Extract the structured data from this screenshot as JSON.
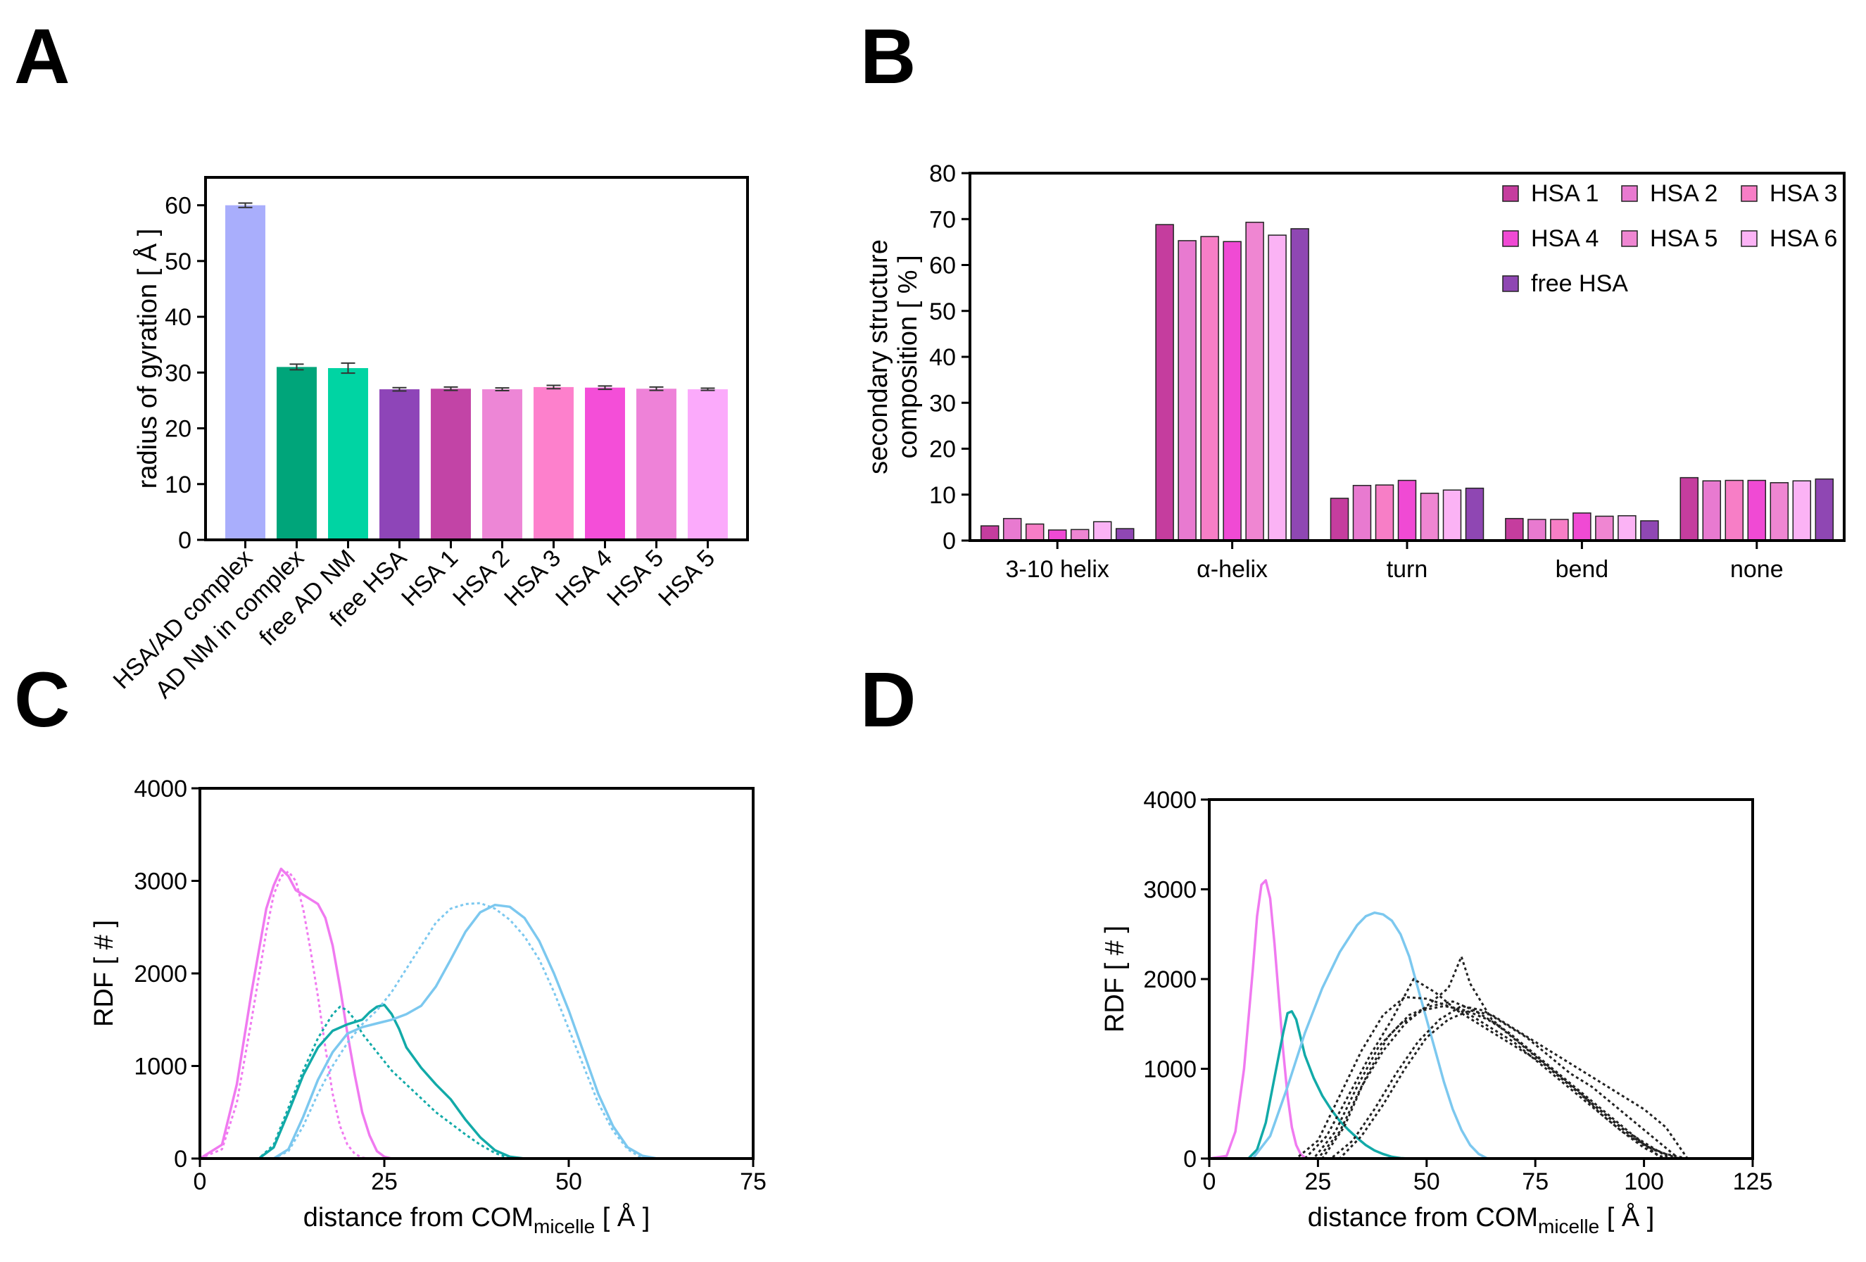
{
  "panels": [
    {
      "id": "A",
      "letter": "A"
    },
    {
      "id": "B",
      "letter": "B"
    },
    {
      "id": "C",
      "letter": "C"
    },
    {
      "id": "D",
      "letter": "D"
    }
  ],
  "chart_data": [
    {
      "panel": "A",
      "type": "bar",
      "title": "",
      "xlabel": "",
      "ylabel": "radius of gyration [ Å ]",
      "ylim": [
        0,
        65
      ],
      "yticks": [
        0,
        10,
        20,
        30,
        40,
        50,
        60
      ],
      "categories": [
        "HSA/AD complex",
        "AD NM in complex",
        "free AD NM",
        "free HSA",
        "HSA 1",
        "HSA 2",
        "HSA 3",
        "HSA 4",
        "HSA 5",
        "HSA 5"
      ],
      "values": [
        60.0,
        31.0,
        30.8,
        27.0,
        27.1,
        27.0,
        27.4,
        27.3,
        27.1,
        27.0
      ],
      "errors": [
        0.4,
        0.5,
        0.9,
        0.3,
        0.3,
        0.25,
        0.3,
        0.3,
        0.3,
        0.2
      ],
      "colors": [
        "#a9aefc",
        "#00a57a",
        "#00d4a3",
        "#8e45b8",
        "#c244a6",
        "#ed86d6",
        "#fd80cc",
        "#f44ed8",
        "#ee82d8",
        "#fbaafb"
      ]
    },
    {
      "panel": "B",
      "type": "bar",
      "title": "",
      "xlabel": "",
      "ylabel_lines": [
        "secondary structure",
        "composition [ % ]"
      ],
      "ylim": [
        0,
        80
      ],
      "yticks": [
        0,
        10,
        20,
        30,
        40,
        50,
        60,
        70,
        80
      ],
      "categories": [
        "3-10 helix",
        "α-helix",
        "turn",
        "bend",
        "none"
      ],
      "legend_position": "top-right",
      "series": [
        {
          "name": "HSA 1",
          "color": "#c53d9e",
          "values": [
            3.2,
            68.8,
            9.2,
            4.8,
            13.7
          ]
        },
        {
          "name": "HSA 2",
          "color": "#e87ad0",
          "values": [
            4.8,
            65.3,
            12.0,
            4.6,
            13.0
          ]
        },
        {
          "name": "HSA 3",
          "color": "#f77ec6",
          "values": [
            3.6,
            66.2,
            12.1,
            4.6,
            13.1
          ]
        },
        {
          "name": "HSA 4",
          "color": "#f04ad4",
          "values": [
            2.3,
            65.1,
            13.1,
            6.0,
            13.1
          ]
        },
        {
          "name": "HSA 5",
          "color": "#ef86d2",
          "values": [
            2.4,
            69.3,
            10.3,
            5.3,
            12.6
          ]
        },
        {
          "name": "HSA 6",
          "color": "#fbb3f5",
          "values": [
            4.1,
            66.5,
            11.0,
            5.4,
            13.0
          ]
        },
        {
          "name": "free HSA",
          "color": "#8f47b3",
          "values": [
            2.6,
            67.9,
            11.4,
            4.3,
            13.4
          ]
        }
      ]
    },
    {
      "panel": "C",
      "type": "line",
      "title": "",
      "xlabel_main": "distance from COM",
      "xlabel_sub": "micelle",
      "xlabel_unit": " [ Å ]",
      "ylabel": "RDF [ # ]",
      "xlim": [
        0,
        75
      ],
      "ylim": [
        0,
        4000
      ],
      "xticks": [
        0,
        25,
        50,
        75
      ],
      "yticks": [
        0,
        1000,
        2000,
        3000,
        4000
      ],
      "series": [
        {
          "name": "magenta solid",
          "color": "#f07af0",
          "style": "solid",
          "x": [
            0,
            3,
            5,
            7,
            9,
            10,
            11,
            12,
            13,
            14,
            15,
            16,
            17,
            18,
            19,
            20,
            21,
            22,
            23,
            24,
            25,
            26,
            75
          ],
          "y": [
            0,
            150,
            800,
            1800,
            2700,
            2950,
            3130,
            3050,
            2900,
            2850,
            2800,
            2750,
            2600,
            2300,
            1850,
            1350,
            900,
            500,
            250,
            80,
            20,
            0,
            0
          ]
        },
        {
          "name": "magenta dotted",
          "color": "#f07af0",
          "style": "dotted",
          "x": [
            0,
            3,
            5,
            7,
            9,
            10,
            11,
            12,
            13,
            14,
            15,
            16,
            17,
            18,
            19,
            20,
            21,
            22,
            23,
            75
          ],
          "y": [
            0,
            100,
            600,
            1500,
            2450,
            2850,
            3050,
            3100,
            3000,
            2700,
            2250,
            1750,
            1200,
            700,
            350,
            150,
            50,
            10,
            0,
            0
          ]
        },
        {
          "name": "teal solid",
          "color": "#12aaa8",
          "style": "solid",
          "x": [
            0,
            8,
            10,
            12,
            14,
            16,
            18,
            20,
            22,
            23,
            24,
            25,
            26,
            27,
            28,
            30,
            32,
            34,
            36,
            38,
            40,
            42,
            44,
            75
          ],
          "y": [
            0,
            0,
            120,
            500,
            900,
            1200,
            1380,
            1450,
            1500,
            1580,
            1640,
            1660,
            1560,
            1400,
            1200,
            980,
            800,
            640,
            420,
            230,
            90,
            20,
            0,
            0
          ]
        },
        {
          "name": "teal dotted",
          "color": "#12aaa8",
          "style": "dotted",
          "x": [
            0,
            8,
            10,
            12,
            14,
            16,
            18,
            19,
            20,
            21,
            22,
            24,
            26,
            28,
            30,
            32,
            34,
            36,
            38,
            40,
            42,
            75
          ],
          "y": [
            0,
            0,
            150,
            550,
            950,
            1300,
            1560,
            1640,
            1600,
            1500,
            1350,
            1150,
            950,
            800,
            650,
            500,
            380,
            260,
            150,
            60,
            0,
            0
          ]
        },
        {
          "name": "cyan solid",
          "color": "#7cc8ef",
          "style": "solid",
          "x": [
            0,
            10,
            12,
            14,
            16,
            18,
            20,
            22,
            24,
            26,
            28,
            30,
            32,
            34,
            36,
            38,
            40,
            42,
            44,
            46,
            48,
            50,
            52,
            54,
            56,
            58,
            60,
            62,
            75
          ],
          "y": [
            0,
            0,
            100,
            450,
            850,
            1150,
            1350,
            1420,
            1460,
            1500,
            1560,
            1650,
            1860,
            2150,
            2450,
            2660,
            2740,
            2720,
            2600,
            2350,
            2000,
            1600,
            1150,
            700,
            350,
            120,
            30,
            0,
            0
          ]
        },
        {
          "name": "cyan dotted",
          "color": "#7cc8ef",
          "style": "dotted",
          "x": [
            0,
            10,
            12,
            14,
            16,
            18,
            20,
            22,
            24,
            26,
            28,
            30,
            32,
            34,
            36,
            38,
            40,
            42,
            44,
            46,
            48,
            50,
            52,
            54,
            56,
            58,
            60,
            75
          ],
          "y": [
            0,
            0,
            80,
            350,
            700,
            1000,
            1250,
            1450,
            1600,
            1800,
            2050,
            2300,
            2550,
            2700,
            2750,
            2760,
            2700,
            2580,
            2400,
            2150,
            1800,
            1400,
            1000,
            600,
            300,
            100,
            0,
            0
          ]
        },
        {
          "name": "baseline purple",
          "color": "#b27ad8",
          "style": "solid",
          "x": [
            0,
            75
          ],
          "y": [
            0,
            0
          ]
        }
      ]
    },
    {
      "panel": "D",
      "type": "line",
      "title": "",
      "xlabel_main": "distance from COM",
      "xlabel_sub": "micelle",
      "xlabel_unit": " [ Å ]",
      "ylabel": "RDF [ # ]",
      "xlim": [
        0,
        125
      ],
      "ylim": [
        0,
        4000
      ],
      "xticks": [
        0,
        25,
        50,
        75,
        100,
        125
      ],
      "yticks": [
        0,
        1000,
        2000,
        3000,
        4000
      ],
      "series": [
        {
          "name": "magenta",
          "color": "#f07af0",
          "style": "solid",
          "x": [
            0,
            4,
            6,
            8,
            10,
            11,
            12,
            13,
            14,
            15,
            16,
            17,
            18,
            19,
            20,
            21,
            22,
            23,
            125
          ],
          "y": [
            0,
            30,
            300,
            1000,
            2100,
            2700,
            3050,
            3100,
            2900,
            2400,
            1800,
            1200,
            700,
            350,
            150,
            50,
            10,
            0,
            0
          ]
        },
        {
          "name": "teal",
          "color": "#12aaa8",
          "style": "solid",
          "x": [
            0,
            9,
            11,
            13,
            15,
            17,
            18,
            19,
            20,
            21,
            22,
            24,
            26,
            28,
            30,
            32,
            34,
            36,
            38,
            40,
            42,
            44,
            46,
            125
          ],
          "y": [
            0,
            0,
            100,
            400,
            900,
            1400,
            1620,
            1640,
            1550,
            1350,
            1150,
            900,
            700,
            550,
            420,
            320,
            230,
            150,
            90,
            50,
            20,
            5,
            0,
            0
          ]
        },
        {
          "name": "cyan",
          "color": "#7cc8ef",
          "style": "solid",
          "x": [
            0,
            10,
            14,
            18,
            22,
            26,
            30,
            34,
            36,
            38,
            40,
            42,
            44,
            46,
            48,
            50,
            52,
            54,
            56,
            58,
            60,
            62,
            64,
            125
          ],
          "y": [
            0,
            0,
            250,
            800,
            1400,
            1900,
            2300,
            2600,
            2700,
            2740,
            2720,
            2650,
            2500,
            2250,
            1900,
            1550,
            1200,
            850,
            550,
            320,
            150,
            50,
            0,
            0
          ]
        },
        {
          "name": "black 1",
          "color": "#222222",
          "style": "dotted",
          "x": [
            0,
            20,
            25,
            30,
            35,
            40,
            45,
            50,
            55,
            60,
            65,
            70,
            75,
            80,
            85,
            90,
            95,
            100,
            105,
            110,
            125
          ],
          "y": [
            0,
            0,
            200,
            700,
            1200,
            1600,
            1800,
            1780,
            1700,
            1600,
            1450,
            1300,
            1100,
            900,
            700,
            500,
            300,
            150,
            50,
            0,
            0
          ]
        },
        {
          "name": "black 2",
          "color": "#222222",
          "style": "dotted",
          "x": [
            0,
            25,
            30,
            35,
            40,
            45,
            50,
            55,
            58,
            60,
            65,
            70,
            75,
            80,
            85,
            90,
            95,
            100,
            105,
            125
          ],
          "y": [
            0,
            0,
            300,
            800,
            1200,
            1500,
            1700,
            1900,
            2250,
            1950,
            1550,
            1350,
            1150,
            950,
            750,
            500,
            300,
            120,
            0,
            0
          ]
        },
        {
          "name": "black 3",
          "color": "#222222",
          "style": "dotted",
          "x": [
            0,
            22,
            27,
            32,
            37,
            42,
            47,
            52,
            57,
            62,
            67,
            72,
            77,
            82,
            87,
            92,
            97,
            102,
            108,
            125
          ],
          "y": [
            0,
            0,
            250,
            700,
            1150,
            1550,
            2000,
            1850,
            1650,
            1500,
            1350,
            1200,
            1050,
            850,
            650,
            450,
            250,
            100,
            0,
            0
          ]
        },
        {
          "name": "black 4",
          "color": "#222222",
          "style": "dotted",
          "x": [
            0,
            28,
            33,
            38,
            43,
            48,
            53,
            58,
            63,
            68,
            73,
            78,
            83,
            88,
            93,
            98,
            103,
            108,
            125
          ],
          "y": [
            0,
            0,
            200,
            550,
            950,
            1300,
            1550,
            1700,
            1650,
            1500,
            1350,
            1150,
            950,
            800,
            600,
            400,
            200,
            0,
            0
          ]
        },
        {
          "name": "black 5",
          "color": "#222222",
          "style": "dotted",
          "x": [
            0,
            24,
            29,
            34,
            39,
            44,
            49,
            54,
            59,
            64,
            69,
            74,
            79,
            84,
            89,
            94,
            99,
            104,
            125
          ],
          "y": [
            0,
            0,
            300,
            800,
            1250,
            1500,
            1650,
            1700,
            1650,
            1550,
            1400,
            1200,
            1000,
            800,
            600,
            400,
            200,
            0,
            0
          ]
        },
        {
          "name": "black 6",
          "color": "#222222",
          "style": "dotted",
          "x": [
            0,
            30,
            35,
            40,
            45,
            50,
            55,
            60,
            65,
            70,
            75,
            80,
            85,
            90,
            95,
            100,
            105,
            110,
            125
          ],
          "y": [
            0,
            0,
            250,
            600,
            1000,
            1350,
            1550,
            1650,
            1600,
            1450,
            1300,
            1150,
            1000,
            850,
            700,
            550,
            350,
            0,
            0
          ]
        },
        {
          "name": "black 7",
          "color": "#222222",
          "style": "dotted",
          "x": [
            0,
            26,
            31,
            36,
            41,
            46,
            51,
            56,
            61,
            66,
            71,
            76,
            81,
            86,
            91,
            96,
            101,
            106,
            125
          ],
          "y": [
            0,
            0,
            350,
            900,
            1350,
            1600,
            1700,
            1750,
            1650,
            1500,
            1300,
            1100,
            900,
            700,
            500,
            300,
            150,
            0,
            0
          ]
        },
        {
          "name": "baseline purple",
          "color": "#b27ad8",
          "style": "solid",
          "x": [
            0,
            125
          ],
          "y": [
            0,
            0
          ]
        }
      ]
    }
  ]
}
